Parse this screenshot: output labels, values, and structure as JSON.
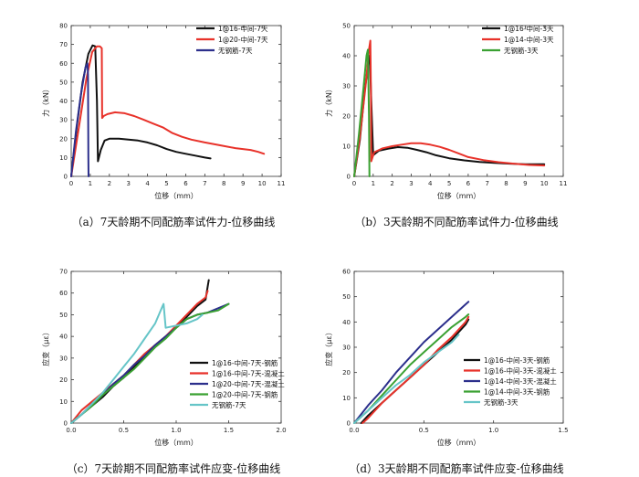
{
  "colors": {
    "black": "#111111",
    "red": "#e8322a",
    "navy": "#2c2f8c",
    "green": "#3aa132",
    "cyan": "#66c5c8",
    "axis": "#333333"
  },
  "chart_data": [
    {
      "id": "a",
      "type": "line",
      "caption": "（a）7天龄期不同配筋率试件力-位移曲线",
      "xlabel": "位移（mm）",
      "ylabel": "力（kN）",
      "xlim": [
        0,
        11
      ],
      "ylim": [
        0,
        80
      ],
      "xticks": [
        "0",
        "1",
        "2",
        "3",
        "4",
        "5",
        "6",
        "7",
        "8",
        "9",
        "10",
        "11"
      ],
      "yticks": [
        "0",
        "10",
        "20",
        "30",
        "40",
        "50",
        "60",
        "70",
        "80"
      ],
      "legend_position": "top-right",
      "series": [
        {
          "name": "1@16-中间-7天",
          "color": "black",
          "x": [
            0,
            0.3,
            0.6,
            0.9,
            1.12,
            1.26,
            1.35,
            1.4,
            1.55,
            1.75,
            2.0,
            2.5,
            3.0,
            3.5,
            4.0,
            4.5,
            5.0,
            5.5,
            6.0,
            6.5,
            7.0,
            7.3
          ],
          "y": [
            0,
            27,
            50,
            65,
            69.5,
            69,
            40,
            8,
            14,
            19,
            20,
            20,
            19.5,
            19,
            18,
            16.5,
            14.5,
            13,
            12,
            11,
            10,
            9.5
          ]
        },
        {
          "name": "1@20-中间-7天",
          "color": "red",
          "x": [
            0,
            0.4,
            0.8,
            1.1,
            1.35,
            1.5,
            1.6,
            1.62,
            1.7,
            1.9,
            2.3,
            2.8,
            3.3,
            3.8,
            4.3,
            4.8,
            5.3,
            5.8,
            6.3,
            7.0,
            7.8,
            8.6,
            9.4,
            9.8,
            10.1
          ],
          "y": [
            0,
            26,
            52,
            66,
            69,
            69,
            68,
            31,
            32,
            33,
            34,
            33.5,
            32,
            30,
            28,
            26,
            23,
            21,
            19.5,
            18,
            16.5,
            15,
            14,
            13,
            12
          ]
        },
        {
          "name": "无钢筋-7天",
          "color": "navy",
          "x": [
            0,
            0.25,
            0.5,
            0.75,
            0.85,
            0.88,
            0.9,
            0.91
          ],
          "y": [
            0,
            24,
            43,
            58,
            60,
            54,
            10,
            0
          ]
        }
      ]
    },
    {
      "id": "b",
      "type": "line",
      "caption": "（b）3天龄期不同配筋率试件力-位移曲线",
      "xlabel": "位移（mm）",
      "ylabel": "力（kN）",
      "xlim": [
        0,
        11
      ],
      "ylim": [
        0,
        50
      ],
      "xticks": [
        "0",
        "1",
        "2",
        "3",
        "4",
        "5",
        "6",
        "7",
        "8",
        "9",
        "10",
        "11"
      ],
      "yticks": [
        "0",
        "10",
        "20",
        "30",
        "40",
        "50"
      ],
      "legend_position": "top-right",
      "series": [
        {
          "name": "1@16-中间-3天",
          "color": "black",
          "x": [
            0,
            0.3,
            0.55,
            0.75,
            0.82,
            0.9,
            1.0,
            1.3,
            1.8,
            2.3,
            2.8,
            3.3,
            3.8,
            4.3,
            5.0,
            5.8,
            6.6,
            7.4,
            8.2,
            9.0,
            9.6,
            10.0
          ],
          "y": [
            0,
            12,
            28,
            38,
            40,
            25,
            7,
            8.5,
            9.2,
            9.7,
            9.5,
            8.8,
            8,
            7,
            6,
            5.3,
            4.8,
            4.5,
            4.2,
            4,
            4,
            4
          ]
        },
        {
          "name": "1@14-中间-3天",
          "color": "red",
          "x": [
            0,
            0.3,
            0.6,
            0.78,
            0.85,
            0.88,
            0.9,
            1.05,
            1.5,
            2.0,
            2.5,
            3.0,
            3.5,
            4.0,
            4.5,
            5.0,
            5.5,
            6.0,
            6.8,
            7.6,
            8.4,
            9.2,
            10.0
          ],
          "y": [
            0,
            13,
            30,
            42,
            45,
            30,
            5,
            8,
            9.3,
            10,
            10.5,
            11,
            11,
            10.5,
            9.8,
            8.8,
            7.6,
            6.4,
            5.4,
            4.7,
            4.2,
            3.8,
            3.6
          ]
        },
        {
          "name": "无钢筋-3天",
          "color": "green",
          "x": [
            0,
            0.25,
            0.5,
            0.65,
            0.72,
            0.78,
            0.8
          ],
          "y": [
            0,
            14,
            30,
            40,
            42,
            20,
            0
          ]
        }
      ]
    },
    {
      "id": "c",
      "type": "line",
      "caption": "（c）7天龄期不同配筋率试件应变-位移曲线",
      "xlabel": "位移（mm）",
      "ylabel": "应变（με）",
      "xlim": [
        0,
        2.0
      ],
      "ylim": [
        0,
        70
      ],
      "xticks": [
        "0.0",
        "0.5",
        "1.0",
        "1.5",
        "2.0"
      ],
      "yticks": [
        "0",
        "10",
        "20",
        "30",
        "40",
        "50",
        "60",
        "70"
      ],
      "legend_position": "bottom-right",
      "series": [
        {
          "name": "1@16-中间-7天-钢筋",
          "color": "black",
          "x": [
            0,
            0.1,
            0.2,
            0.3,
            0.4,
            0.5,
            0.6,
            0.7,
            0.8,
            0.9,
            1.0,
            1.1,
            1.2,
            1.28,
            1.3,
            1.31
          ],
          "y": [
            0,
            4,
            8,
            12,
            17,
            21,
            26,
            31,
            36,
            40,
            44,
            49,
            54,
            57,
            63,
            66
          ]
        },
        {
          "name": "1@16-中间-7天-混凝土",
          "color": "red",
          "x": [
            0,
            0.1,
            0.2,
            0.3,
            0.4,
            0.5,
            0.6,
            0.7,
            0.8,
            0.9,
            1.0,
            1.1,
            1.2,
            1.28,
            1.3
          ],
          "y": [
            0,
            6,
            10,
            14,
            18,
            22,
            27,
            32,
            36,
            40,
            45,
            50,
            55,
            58,
            61
          ]
        },
        {
          "name": "1@20-中间-7天-混凝土",
          "color": "navy",
          "x": [
            0,
            0.1,
            0.2,
            0.3,
            0.4,
            0.5,
            0.6,
            0.7,
            0.8,
            0.9,
            1.0,
            1.1,
            1.2,
            1.3,
            1.4,
            1.5
          ],
          "y": [
            0,
            4,
            9,
            13,
            18,
            22,
            27,
            31,
            36,
            40,
            44,
            48,
            50,
            51,
            53,
            55
          ]
        },
        {
          "name": "1@20-中间-7天-钢筋",
          "color": "green",
          "x": [
            0,
            0.1,
            0.2,
            0.3,
            0.4,
            0.5,
            0.6,
            0.7,
            0.8,
            0.9,
            1.0,
            1.1,
            1.2,
            1.3,
            1.4,
            1.5
          ],
          "y": [
            0,
            4,
            8,
            13,
            17,
            21,
            25,
            30,
            35,
            39,
            44,
            48,
            50,
            51,
            52,
            55
          ]
        },
        {
          "name": "无钢筋-7天",
          "color": "cyan",
          "x": [
            0,
            0.1,
            0.2,
            0.3,
            0.4,
            0.5,
            0.6,
            0.7,
            0.8,
            0.87,
            0.88,
            0.9,
            1.0,
            1.1,
            1.2,
            1.25
          ],
          "y": [
            0,
            4,
            9,
            14,
            20,
            26,
            32,
            39,
            46,
            54,
            55,
            44,
            45,
            46,
            48,
            50
          ]
        }
      ]
    },
    {
      "id": "d",
      "type": "line",
      "caption": "（d）3天龄期不同配筋率试件应变-位移曲线",
      "xlabel": "位移（mm）",
      "ylabel": "应变（με）",
      "xlim": [
        0,
        1.5
      ],
      "ylim": [
        0,
        60
      ],
      "xticks": [
        "0.0",
        "0.5",
        "1.0",
        "1.5"
      ],
      "yticks": [
        "0",
        "10",
        "20",
        "30",
        "40",
        "50",
        "60"
      ],
      "legend_position": "bottom-right",
      "series": [
        {
          "name": "1@16-中间-3天-钢筋",
          "color": "black",
          "x": [
            0.05,
            0.1,
            0.2,
            0.3,
            0.4,
            0.5,
            0.6,
            0.7,
            0.8,
            0.82
          ],
          "y": [
            0,
            3,
            8,
            13,
            18,
            23,
            28,
            33,
            39,
            41
          ]
        },
        {
          "name": "1@16-中间-3天-混凝土",
          "color": "red",
          "x": [
            0.06,
            0.1,
            0.2,
            0.3,
            0.4,
            0.5,
            0.6,
            0.7,
            0.8,
            0.82
          ],
          "y": [
            0,
            2,
            8,
            13,
            18,
            23,
            29,
            34,
            40,
            42
          ]
        },
        {
          "name": "1@14-中间-3天-混凝土",
          "color": "navy",
          "x": [
            0,
            0.1,
            0.2,
            0.3,
            0.4,
            0.5,
            0.6,
            0.7,
            0.8,
            0.82
          ],
          "y": [
            0,
            7,
            13,
            20,
            26,
            32,
            37,
            42,
            47,
            48
          ]
        },
        {
          "name": "1@14-中间-3天-钢筋",
          "color": "green",
          "x": [
            0,
            0.1,
            0.2,
            0.3,
            0.4,
            0.5,
            0.6,
            0.7,
            0.8,
            0.82
          ],
          "y": [
            0,
            5,
            11,
            17,
            23,
            28,
            33,
            38,
            42,
            43
          ]
        },
        {
          "name": "无钢筋-3天",
          "color": "cyan",
          "x": [
            0,
            0.1,
            0.2,
            0.3,
            0.4,
            0.5,
            0.6,
            0.7,
            0.75
          ],
          "y": [
            0,
            5,
            10,
            15,
            19,
            24,
            28,
            32,
            35
          ]
        }
      ]
    }
  ]
}
